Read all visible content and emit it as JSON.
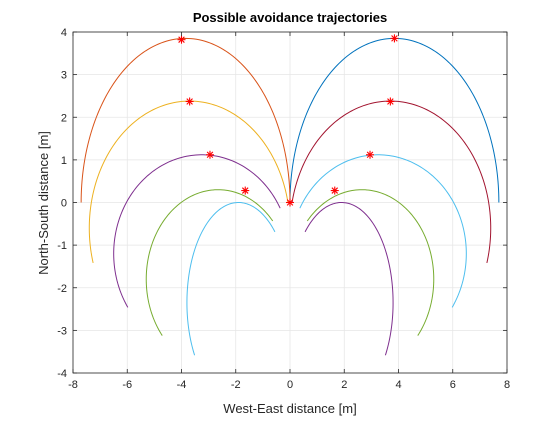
{
  "chart_data": {
    "type": "line",
    "title": "Possible avoidance trajectories",
    "xlabel": "West-East distance [m]",
    "ylabel": "North-South distance [m]",
    "xlim": [
      -8,
      8
    ],
    "ylim": [
      -4,
      4
    ],
    "grid": true,
    "xticks": [
      "-8",
      "-6",
      "-4",
      "-2",
      "0",
      "2",
      "4",
      "6",
      "8"
    ],
    "yticks": [
      "-4",
      "-3",
      "-2",
      "-1",
      "0",
      "1",
      "2",
      "3",
      "4"
    ],
    "colors": [
      "#0072BD",
      "#D95319",
      "#EDB120",
      "#7E2F8E",
      "#77AC30",
      "#4DBEEE",
      "#A2142F"
    ],
    "marker_color": "#FF0000",
    "series": [
      {
        "color": "#0072BD",
        "center": [
          3.85,
          0.0
        ],
        "apex": [
          3.85,
          3.85
        ],
        "end": [
          7.7,
          0.0
        ],
        "marker": [
          3.85,
          3.85
        ]
      },
      {
        "color": "#D95319",
        "center": [
          -3.85,
          0.0
        ],
        "apex": [
          -3.85,
          3.85
        ],
        "end": [
          -7.7,
          0.0
        ],
        "marker": [
          -4.0,
          3.82
        ]
      },
      {
        "color": "#EDB120",
        "center": [
          -3.7,
          -0.6
        ],
        "apex": [
          -3.7,
          2.38
        ],
        "end": [
          -7.4,
          -1.45
        ],
        "marker": [
          -3.7,
          2.37
        ]
      },
      {
        "color": "#A2142F",
        "center": [
          3.7,
          -0.6
        ],
        "apex": [
          3.7,
          2.38
        ],
        "end": [
          7.4,
          -1.45
        ],
        "marker": [
          3.7,
          2.37
        ]
      },
      {
        "color": "#7E2F8E",
        "center": [
          -3.25,
          -1.2
        ],
        "apex": [
          -3.25,
          1.12
        ],
        "end": [
          -6.5,
          -2.7
        ],
        "marker": [
          -2.95,
          1.12
        ]
      },
      {
        "color": "#4DBEEE",
        "center": [
          3.25,
          -1.2
        ],
        "apex": [
          3.25,
          1.12
        ],
        "end": [
          6.5,
          -2.7
        ],
        "marker": [
          2.95,
          1.12
        ]
      },
      {
        "color": "#77AC30",
        "center": [
          -2.65,
          -1.8
        ],
        "apex": [
          -2.65,
          0.3
        ],
        "end": [
          -5.3,
          -3.5
        ],
        "marker": [
          -1.65,
          0.28
        ]
      },
      {
        "color": "#77AC30",
        "center": [
          2.65,
          -1.8
        ],
        "apex": [
          2.65,
          0.3
        ],
        "end": [
          5.3,
          -3.5
        ],
        "marker": [
          1.65,
          0.28
        ]
      },
      {
        "color": "#7E2F8E",
        "center": [
          1.9,
          -2.35
        ],
        "apex": [
          1.9,
          0.0
        ],
        "end": [
          3.8,
          -3.8
        ],
        "marker": null
      },
      {
        "color": "#4DBEEE",
        "center": [
          -1.9,
          -2.35
        ],
        "apex": [
          -1.9,
          0.0
        ],
        "end": [
          -3.8,
          -3.8
        ],
        "marker": null
      }
    ],
    "origin_marker": [
      0,
      0
    ]
  }
}
